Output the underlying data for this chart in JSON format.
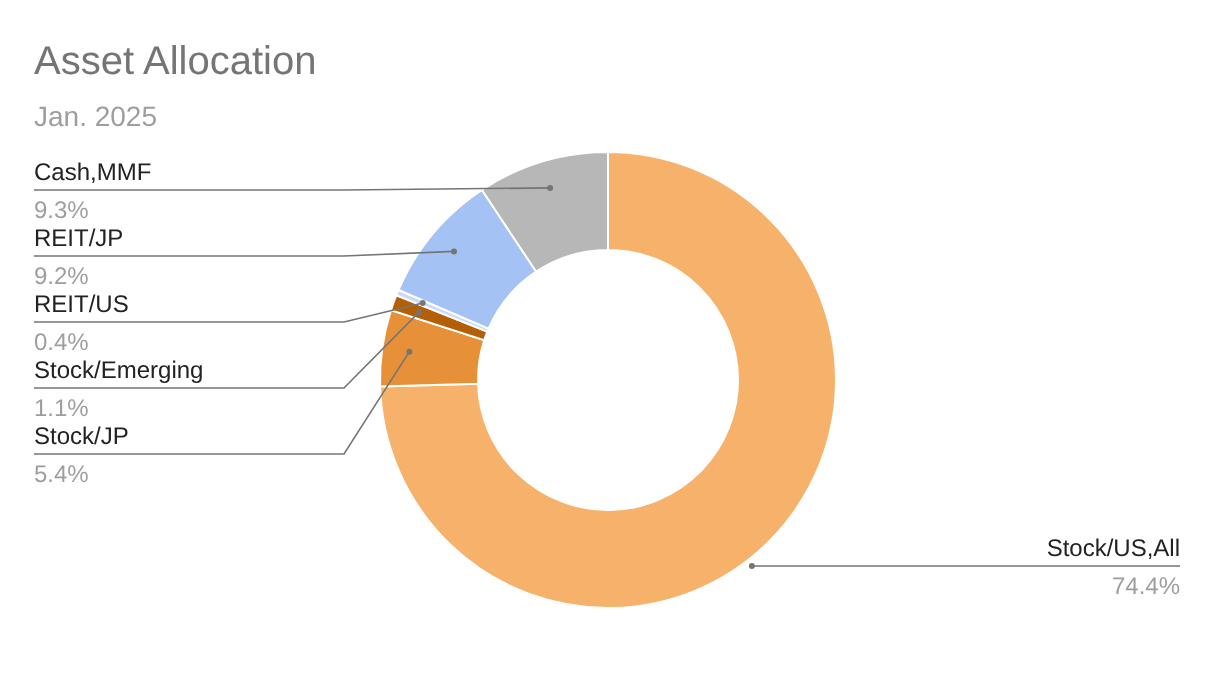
{
  "chart_data": {
    "type": "donut",
    "title": "Asset Allocation",
    "subtitle": "Jan. 2025",
    "categories": [
      "Stock/US,All",
      "Stock/JP",
      "Stock/Emerging",
      "REIT/US",
      "REIT/JP",
      "Cash,MMF"
    ],
    "values": [
      74.4,
      5.4,
      1.1,
      0.4,
      9.2,
      9.3
    ],
    "colors": [
      "#f6b26b",
      "#e69138",
      "#b45f06",
      "#c9daf8",
      "#a4c2f4",
      "#b7b7b7"
    ],
    "value_labels": [
      "74.4%",
      "5.4%",
      "1.1%",
      "0.4%",
      "9.2%",
      "9.3%"
    ]
  }
}
